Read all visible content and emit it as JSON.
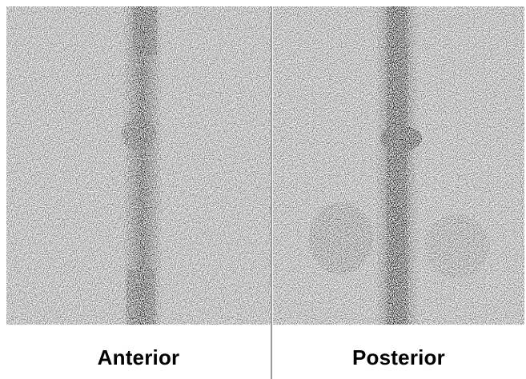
{
  "views": {
    "anterior": {
      "label": "Anterior"
    },
    "posterior": {
      "label": "Posterior"
    }
  },
  "colors": {
    "background": "#ffffff",
    "uptake": "#000000",
    "divider": "#9a9a9a"
  }
}
